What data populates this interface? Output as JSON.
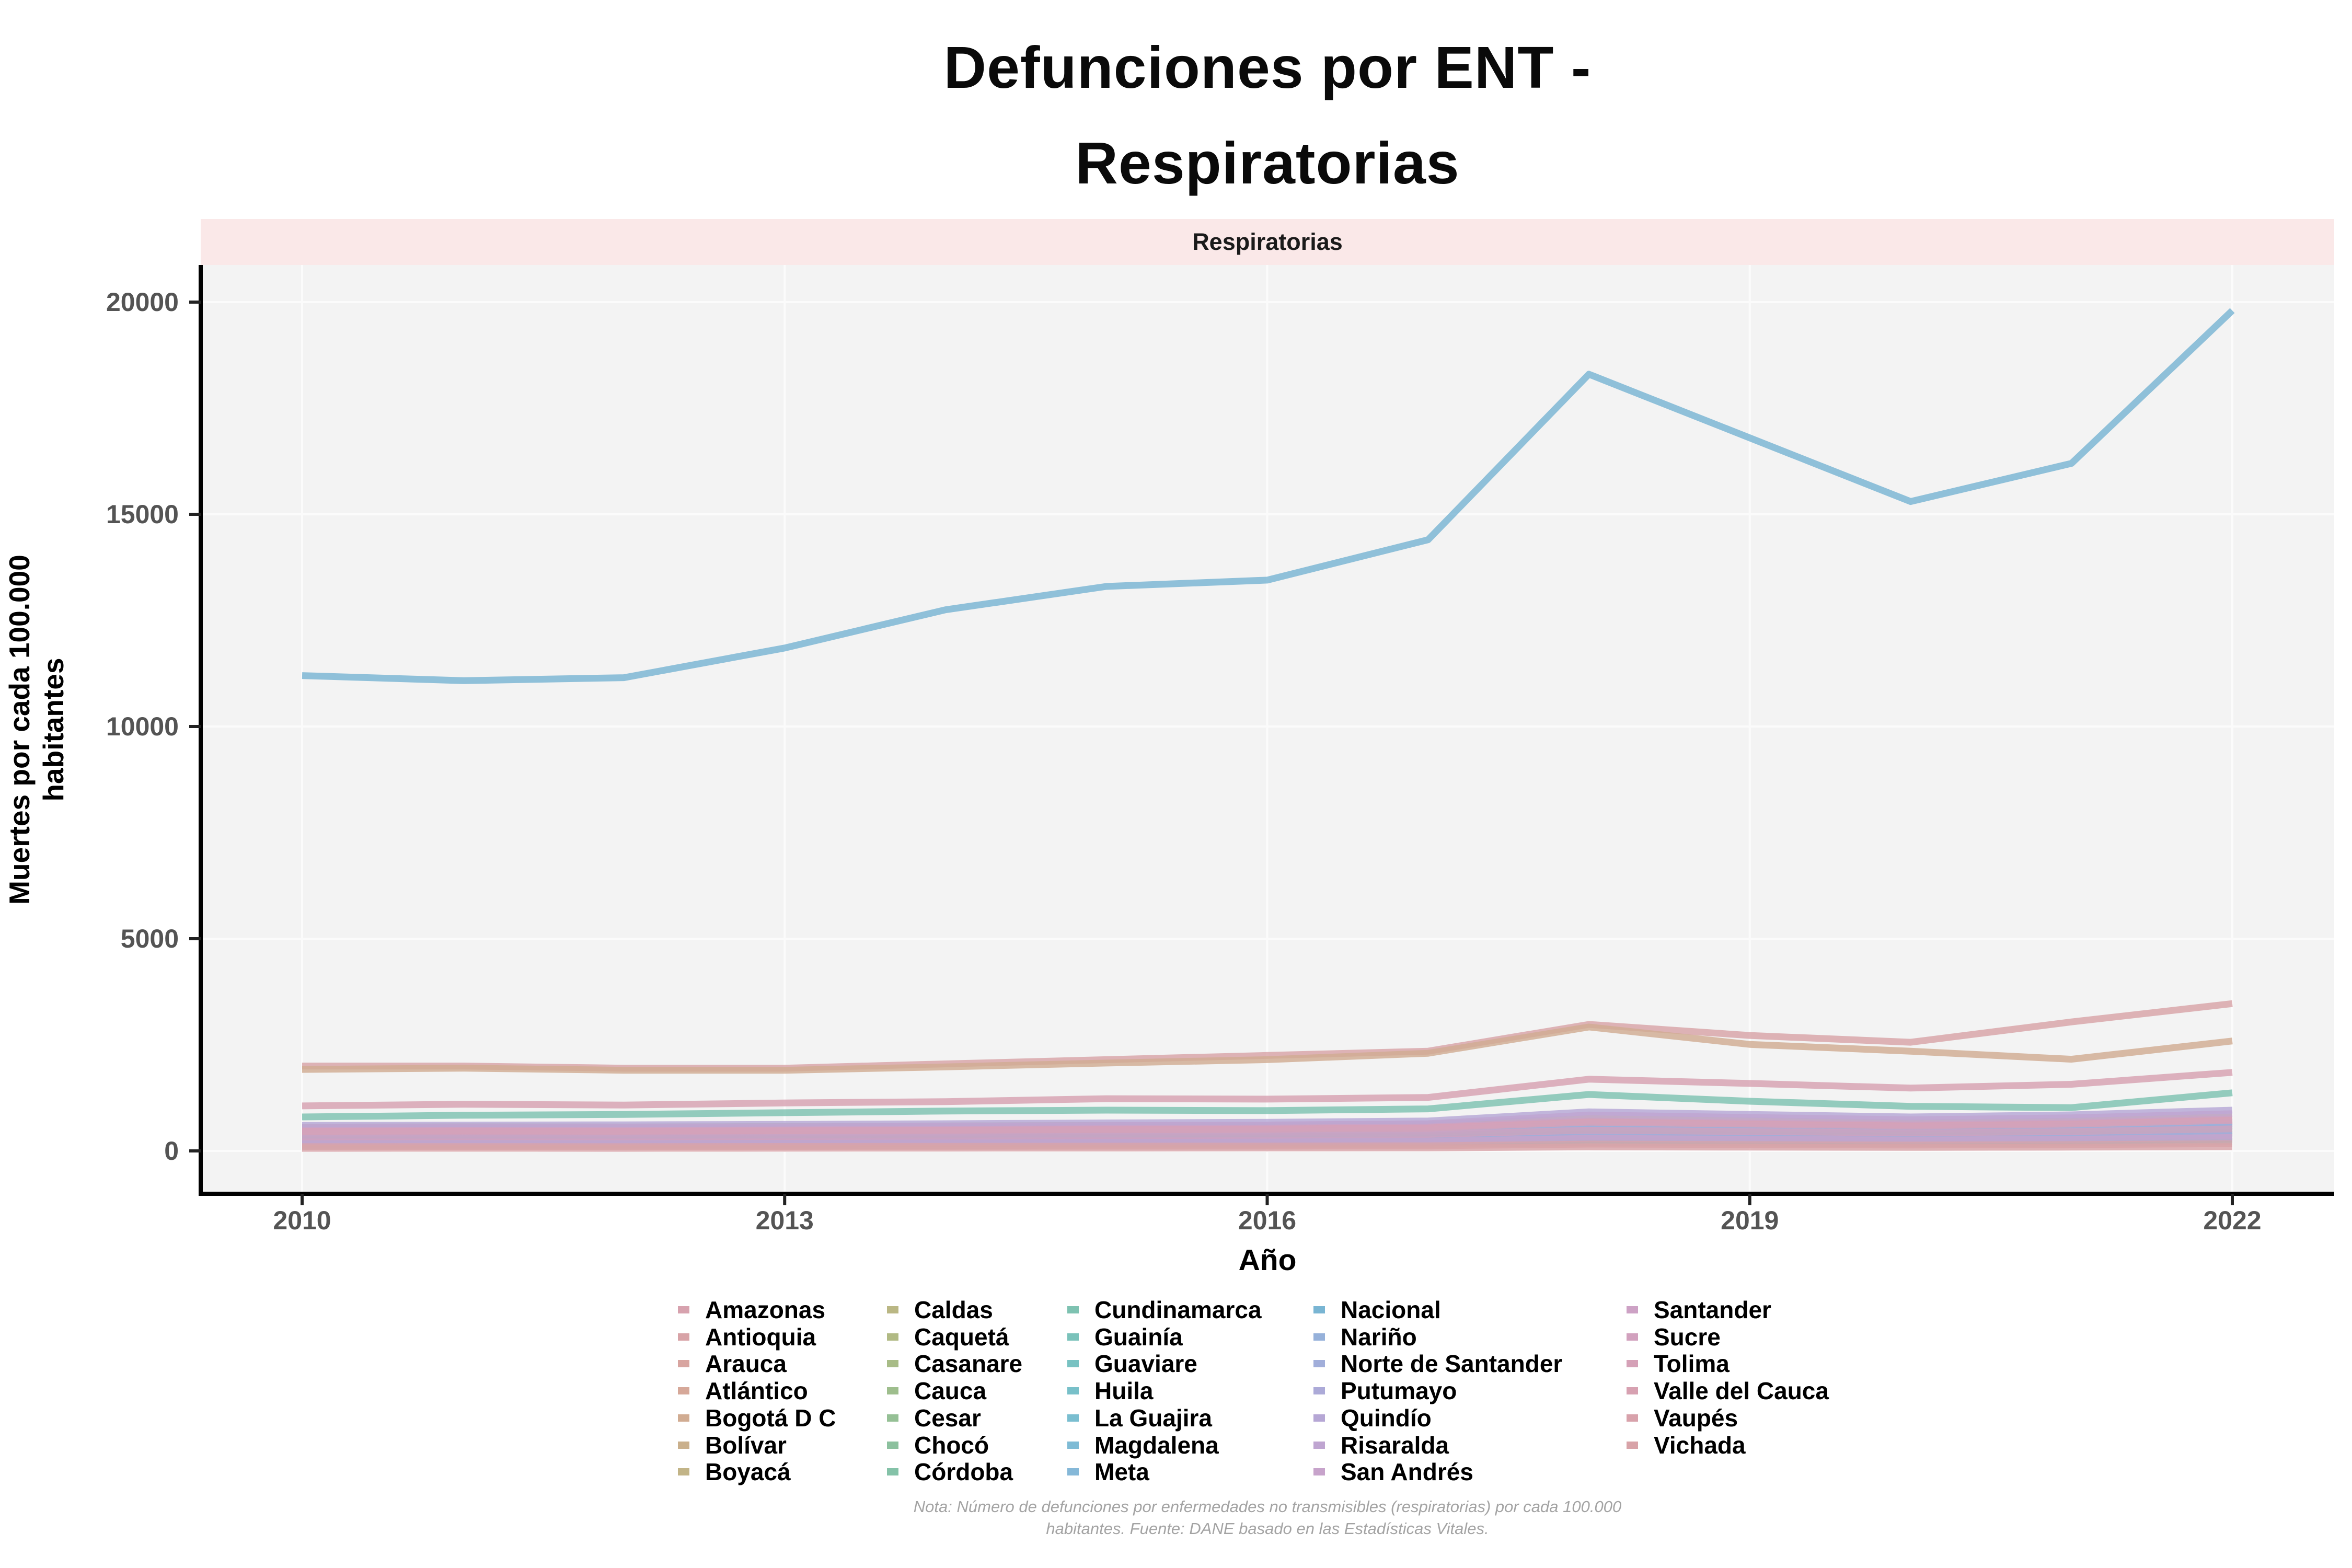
{
  "title": "Defunciones por ENT -\nRespiratorias",
  "facet_label": "Respiratorias",
  "x_axis": {
    "title": "Año",
    "ticks": [
      2010,
      2013,
      2016,
      2019,
      2022
    ]
  },
  "y_axis": {
    "title": "Muertes por cada 100.000\nhabitantes",
    "ticks": [
      0,
      5000,
      10000,
      15000,
      20000
    ]
  },
  "note": "Nota: Número de defunciones por enfermedades no transmisibles (respiratorias) por cada 100.000\nhabitantes. Fuente: DANE basado en las Estadísticas Vitales.",
  "colors": {
    "strip_bg": "#fae8e8",
    "panel_bg": "#f3f3f3",
    "grid": "#fbfbfb",
    "axis_line": "#000000",
    "tick_mark": "#222222",
    "tick_label": "#545454",
    "note_text": "#a3a3a3"
  },
  "chart_data": {
    "type": "line",
    "x": [
      2010,
      2011,
      2012,
      2013,
      2014,
      2015,
      2016,
      2017,
      2018,
      2019,
      2020,
      2021,
      2022
    ],
    "xlim": [
      2010,
      2022
    ],
    "ylim": [
      0,
      20000
    ],
    "grid": "major",
    "legend_position": "bottom",
    "xlabel": "Año",
    "ylabel": "Muertes por cada 100.000 habitantes",
    "facet": "Respiratorias",
    "series": [
      {
        "name": "Amazonas",
        "color": "#d7a2ae",
        "values": [
          150,
          155,
          150,
          160,
          165,
          170,
          175,
          185,
          260,
          240,
          210,
          230,
          280
        ]
      },
      {
        "name": "Antioquia",
        "color": "#d8a3a7",
        "values": [
          2000,
          2000,
          1950,
          1950,
          2050,
          2150,
          2250,
          2350,
          2980,
          2720,
          2560,
          3040,
          3470
        ]
      },
      {
        "name": "Arauca",
        "color": "#d8a5a0",
        "values": [
          230,
          240,
          235,
          245,
          255,
          265,
          270,
          285,
          380,
          350,
          320,
          350,
          420
        ]
      },
      {
        "name": "Atlántico",
        "color": "#d6a899",
        "values": [
          430,
          440,
          445,
          455,
          465,
          480,
          490,
          510,
          640,
          600,
          560,
          600,
          680
        ]
      },
      {
        "name": "Bogotá D C",
        "color": "#d1ac92",
        "values": [
          1920,
          1950,
          1900,
          1900,
          1980,
          2070,
          2150,
          2300,
          2920,
          2510,
          2350,
          2160,
          2590
        ]
      },
      {
        "name": "Bolívar",
        "color": "#cab08c",
        "values": [
          360,
          370,
          365,
          375,
          385,
          395,
          405,
          425,
          540,
          500,
          470,
          500,
          570
        ]
      },
      {
        "name": "Boyacá",
        "color": "#c2b487",
        "values": [
          560,
          570,
          565,
          575,
          590,
          600,
          610,
          630,
          760,
          710,
          660,
          700,
          800
        ]
      },
      {
        "name": "Caldas",
        "color": "#bab784",
        "values": [
          520,
          530,
          525,
          535,
          545,
          555,
          565,
          585,
          690,
          645,
          605,
          645,
          730
        ]
      },
      {
        "name": "Caquetá",
        "color": "#b1ba84",
        "values": [
          280,
          285,
          282,
          290,
          300,
          310,
          315,
          330,
          420,
          390,
          360,
          390,
          450
        ]
      },
      {
        "name": "Casanare",
        "color": "#a8bc87",
        "values": [
          310,
          315,
          312,
          320,
          330,
          340,
          348,
          365,
          460,
          430,
          400,
          430,
          490
        ]
      },
      {
        "name": "Cauca",
        "color": "#9ebe8d",
        "values": [
          390,
          395,
          392,
          400,
          412,
          425,
          432,
          452,
          560,
          525,
          490,
          525,
          595
        ]
      },
      {
        "name": "Cesar",
        "color": "#95c095",
        "values": [
          340,
          345,
          342,
          350,
          360,
          372,
          380,
          398,
          500,
          468,
          436,
          468,
          532
        ]
      },
      {
        "name": "Chocó",
        "color": "#8cc19e",
        "values": [
          200,
          205,
          202,
          210,
          218,
          226,
          232,
          244,
          320,
          298,
          276,
          298,
          340
        ]
      },
      {
        "name": "Córdoba",
        "color": "#84c2a8",
        "values": [
          300,
          305,
          302,
          310,
          320,
          330,
          338,
          355,
          450,
          420,
          392,
          420,
          478
        ]
      },
      {
        "name": "Cundinamarca",
        "color": "#7ec2b1",
        "values": [
          800,
          840,
          860,
          900,
          940,
          960,
          950,
          990,
          1330,
          1170,
          1050,
          1020,
          1370
        ]
      },
      {
        "name": "Guainía",
        "color": "#7ac2ba",
        "values": [
          120,
          122,
          120,
          126,
          130,
          136,
          140,
          148,
          200,
          186,
          172,
          186,
          215
        ]
      },
      {
        "name": "Guaviare",
        "color": "#78c2c2",
        "values": [
          160,
          163,
          161,
          167,
          173,
          180,
          185,
          195,
          260,
          242,
          224,
          242,
          278
        ]
      },
      {
        "name": "Huila",
        "color": "#78c0c9",
        "values": [
          420,
          426,
          422,
          432,
          445,
          458,
          468,
          490,
          610,
          570,
          532,
          570,
          650
        ]
      },
      {
        "name": "La Guajira",
        "color": "#7abed0",
        "values": [
          250,
          254,
          251,
          258,
          266,
          275,
          282,
          296,
          380,
          355,
          330,
          355,
          405
        ]
      },
      {
        "name": "Magdalena",
        "color": "#7ebbd5",
        "values": [
          270,
          274,
          271,
          279,
          288,
          297,
          305,
          320,
          408,
          381,
          354,
          381,
          435
        ]
      },
      {
        "name": "Meta",
        "color": "#85b8d8",
        "values": [
          380,
          386,
          382,
          392,
          404,
          416,
          426,
          446,
          560,
          523,
          487,
          523,
          595
        ]
      },
      {
        "name": "Nacional",
        "color": "#79b5d3",
        "values": [
          11200,
          11080,
          11150,
          11850,
          12750,
          13300,
          13450,
          14400,
          18300,
          16800,
          15300,
          16200,
          19800
        ]
      },
      {
        "name": "Nariño",
        "color": "#96b1da",
        "values": [
          410,
          416,
          412,
          422,
          435,
          448,
          458,
          480,
          600,
          560,
          522,
          560,
          640
        ]
      },
      {
        "name": "Norte de Santander",
        "color": "#a1aeda",
        "values": [
          440,
          447,
          443,
          453,
          467,
          481,
          492,
          515,
          645,
          602,
          561,
          602,
          688
        ]
      },
      {
        "name": "Putumayo",
        "color": "#acaad8",
        "values": [
          220,
          223,
          221,
          227,
          234,
          242,
          248,
          260,
          340,
          317,
          295,
          317,
          362
        ]
      },
      {
        "name": "Quindío",
        "color": "#b6a7d5",
        "values": [
          600,
          610,
          615,
          625,
          640,
          660,
          675,
          705,
          920,
          860,
          800,
          850,
          960
        ]
      },
      {
        "name": "Risaralda",
        "color": "#bfa5d1",
        "values": [
          545,
          553,
          549,
          561,
          578,
          595,
          610,
          640,
          845,
          788,
          733,
          780,
          875
        ]
      },
      {
        "name": "San Andrés",
        "color": "#c7a3cb",
        "values": [
          190,
          193,
          191,
          196,
          202,
          209,
          214,
          225,
          295,
          275,
          256,
          275,
          315
        ]
      },
      {
        "name": "Santander",
        "color": "#cda2c5",
        "values": [
          480,
          487,
          483,
          494,
          509,
          524,
          537,
          563,
          705,
          658,
          613,
          658,
          752
        ]
      },
      {
        "name": "Sucre",
        "color": "#d2a1be",
        "values": [
          330,
          335,
          332,
          340,
          350,
          361,
          370,
          388,
          488,
          456,
          424,
          456,
          520
        ]
      },
      {
        "name": "Tolima",
        "color": "#d5a1b7",
        "values": [
          460,
          467,
          463,
          474,
          488,
          503,
          515,
          540,
          676,
          631,
          588,
          631,
          721
        ]
      },
      {
        "name": "Valle del Cauca",
        "color": "#d7a1b1",
        "values": [
          1060,
          1100,
          1080,
          1130,
          1160,
          1230,
          1220,
          1260,
          1690,
          1590,
          1480,
          1570,
          1850
        ]
      },
      {
        "name": "Vaupés",
        "color": "#d8a2ab",
        "values": [
          100,
          102,
          100,
          105,
          108,
          112,
          115,
          121,
          160,
          149,
          139,
          149,
          170
        ]
      },
      {
        "name": "Vichada",
        "color": "#d8a3a8",
        "values": [
          60,
          61,
          60,
          63,
          65,
          67,
          69,
          72,
          95,
          89,
          83,
          89,
          100
        ]
      }
    ]
  }
}
